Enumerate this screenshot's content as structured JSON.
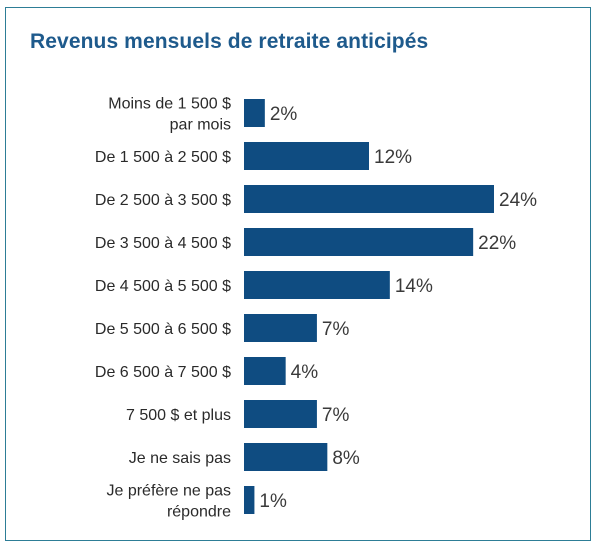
{
  "chart_data": {
    "type": "bar",
    "orientation": "horizontal",
    "title": "Revenus mensuels de retraite anticipés",
    "categories": [
      [
        "Moins de 1 500 $",
        "par mois"
      ],
      [
        "De 1 500 à 2 500 $"
      ],
      [
        "De 2 500 à 3 500 $"
      ],
      [
        "De 3 500 à 4 500 $"
      ],
      [
        "De 4 500 à 5 500 $"
      ],
      [
        "De 5 500 à 6 500 $"
      ],
      [
        "De 6 500 à 7 500 $"
      ],
      [
        "7 500 $ et plus"
      ],
      [
        "Je ne sais pas"
      ],
      [
        "Je préfère ne pas",
        "répondre"
      ]
    ],
    "values": [
      2,
      12,
      24,
      22,
      14,
      7,
      4,
      7,
      8,
      1
    ],
    "value_labels": [
      "2%",
      "12%",
      "24%",
      "22%",
      "14%",
      "7%",
      "4%",
      "7%",
      "8%",
      "1%"
    ],
    "unit": "%",
    "xlim": [
      0,
      24
    ],
    "grid": false,
    "legend": "none",
    "bar_color": "#0f4c81",
    "title_color": "#1e5a8c",
    "border_color": "#2d7d96"
  }
}
